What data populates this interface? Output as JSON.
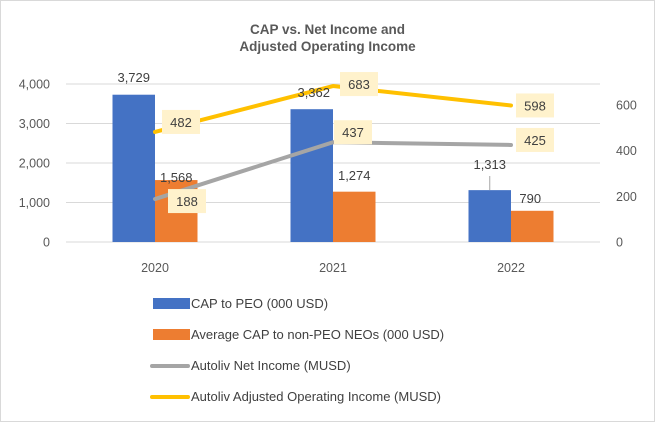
{
  "chart_data": {
    "type": "bar",
    "title_line1": "CAP vs. Net Income and",
    "title_line2": "Adjusted Operating Income",
    "categories": [
      "2020",
      "2021",
      "2022"
    ],
    "left_axis": {
      "min": 0,
      "max": 4000,
      "ticks": [
        "0",
        "1,000",
        "2,000",
        "3,000",
        "4,000"
      ],
      "tick_values": [
        0,
        1000,
        2000,
        3000,
        4000
      ]
    },
    "right_axis": {
      "min": 0,
      "max": 700,
      "ticks": [
        "0",
        "200",
        "400",
        "600"
      ],
      "tick_values": [
        0,
        200,
        400,
        600
      ]
    },
    "grid": true,
    "legend_position": "bottom",
    "series": [
      {
        "name": "CAP to PEO (000 USD)",
        "kind": "bar",
        "axis": "left",
        "color": "#4472C4",
        "values": [
          3729,
          3362,
          1313
        ],
        "labels": [
          "3,729",
          "3,362",
          "1,313"
        ]
      },
      {
        "name": "Average CAP to non-PEO NEOs (000 USD)",
        "kind": "bar",
        "axis": "left",
        "color": "#ED7D31",
        "values": [
          1568,
          1274,
          790
        ],
        "labels": [
          "1,568",
          "1,274",
          "790"
        ]
      },
      {
        "name": "Autoliv Net Income (MUSD)",
        "kind": "line",
        "axis": "right",
        "color": "#A5A5A5",
        "values": [
          188,
          437,
          425
        ],
        "labels": [
          "188",
          "437",
          "425"
        ]
      },
      {
        "name": "Autoliv Adjusted Operating Income (MUSD)",
        "kind": "line",
        "axis": "right",
        "color": "#FFC000",
        "values": [
          482,
          683,
          598
        ],
        "labels": [
          "482",
          "683",
          "598"
        ]
      }
    ],
    "label_box_color": "#FFF2CC"
  }
}
